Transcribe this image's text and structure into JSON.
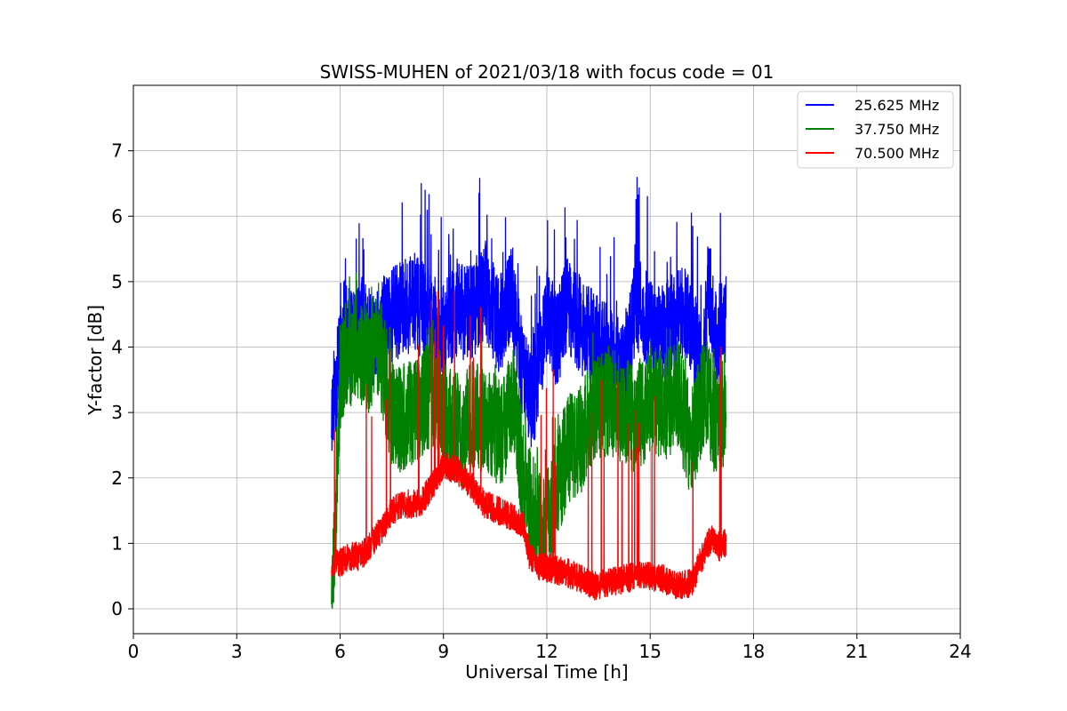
{
  "chart_data": {
    "type": "line",
    "title": "SWISS-MUHEN of 2021/03/18 with focus code = 01",
    "xlabel": "Universal Time [h]",
    "ylabel": "Y-factor [dB]",
    "xlim": [
      0,
      24
    ],
    "ylim": [
      -0.38,
      8.0
    ],
    "xticks": [
      "0",
      "3",
      "6",
      "9",
      "12",
      "15",
      "18",
      "21",
      "24"
    ],
    "yticks": [
      "0",
      "1",
      "2",
      "3",
      "4",
      "5",
      "6",
      "7"
    ],
    "grid": true,
    "legend_position": "top-right",
    "series": [
      {
        "name": "25.625 MHz",
        "color": "#0000ff",
        "x": [
          5.75,
          5.9,
          6.1,
          6.3,
          6.6,
          7.0,
          7.4,
          7.8,
          8.2,
          8.6,
          9.0,
          9.4,
          9.8,
          10.2,
          10.6,
          11.0,
          11.3,
          11.6,
          12.0,
          12.3,
          12.6,
          13.0,
          13.4,
          13.8,
          14.2,
          14.6,
          15.0,
          15.4,
          15.8,
          16.2,
          16.5,
          16.7,
          16.9,
          17.2
        ],
        "y": [
          3.0,
          3.5,
          4.3,
          4.1,
          4.4,
          4.0,
          4.5,
          4.6,
          4.7,
          4.4,
          4.2,
          4.6,
          4.5,
          4.9,
          4.3,
          4.8,
          3.6,
          3.1,
          4.5,
          4.1,
          4.7,
          4.3,
          4.1,
          3.9,
          3.6,
          4.7,
          4.3,
          4.2,
          4.5,
          4.4,
          3.6,
          5.0,
          4.1,
          4.5
        ]
      },
      {
        "name": "37.750 MHz",
        "color": "#008000",
        "x": [
          5.75,
          5.85,
          6.0,
          6.2,
          6.5,
          6.8,
          7.1,
          7.5,
          7.9,
          8.3,
          8.7,
          9.1,
          9.5,
          9.9,
          10.3,
          10.7,
          11.0,
          11.3,
          11.6,
          11.9,
          12.2,
          12.6,
          13.0,
          13.4,
          13.8,
          14.2,
          14.6,
          15.0,
          15.4,
          15.8,
          16.2,
          16.6,
          16.9,
          17.2
        ],
        "y": [
          0.2,
          1.2,
          3.6,
          3.9,
          4.0,
          3.8,
          4.1,
          3.0,
          2.9,
          3.1,
          3.3,
          2.9,
          2.7,
          3.0,
          2.9,
          2.6,
          3.3,
          2.1,
          1.4,
          1.2,
          1.7,
          2.4,
          2.6,
          3.1,
          3.2,
          3.0,
          2.9,
          3.2,
          3.1,
          3.3,
          2.5,
          3.4,
          2.8,
          3.1
        ]
      },
      {
        "name": "70.500 MHz",
        "color": "#ff0000",
        "x": [
          5.75,
          6.0,
          6.3,
          6.6,
          6.9,
          7.2,
          7.5,
          7.9,
          8.3,
          8.7,
          9.0,
          9.4,
          9.8,
          10.2,
          10.6,
          11.0,
          11.3,
          11.5,
          11.8,
          12.2,
          12.6,
          13.0,
          13.4,
          13.8,
          14.2,
          14.6,
          15.0,
          15.4,
          15.8,
          16.2,
          16.6,
          16.8,
          17.0,
          17.2
        ],
        "y": [
          0.7,
          0.7,
          0.8,
          0.8,
          1.0,
          1.2,
          1.5,
          1.6,
          1.6,
          1.9,
          2.2,
          2.1,
          1.9,
          1.6,
          1.5,
          1.4,
          1.3,
          0.8,
          0.65,
          0.6,
          0.55,
          0.45,
          0.35,
          0.4,
          0.45,
          0.5,
          0.5,
          0.45,
          0.35,
          0.4,
          0.9,
          1.1,
          0.95,
          1.0
        ]
      }
    ]
  }
}
